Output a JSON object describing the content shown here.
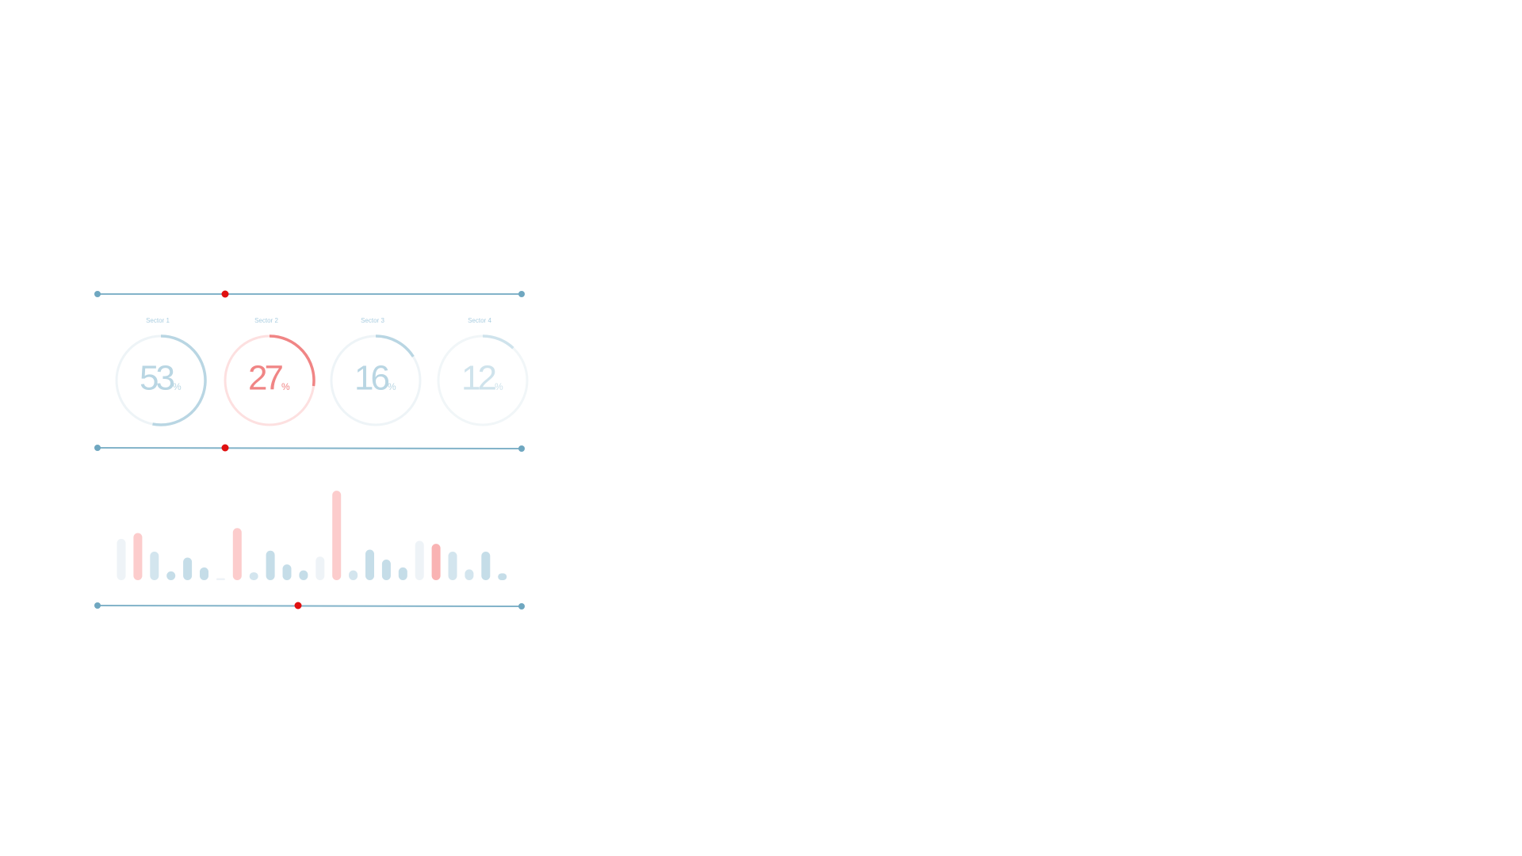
{
  "chart_data": [
    {
      "type": "gauge",
      "categories": [
        "Sector 1",
        "Sector 2",
        "Sector 3",
        "Sector 4"
      ],
      "values": [
        53,
        27,
        16,
        12
      ],
      "unit": "%",
      "colors": [
        "#b9d6e3",
        "#f08585",
        "#b9d6e3",
        "#cfe3ec"
      ],
      "track_colors": [
        "#eef4f7",
        "#fde0e0",
        "#eef4f7",
        "#f1f6f8"
      ]
    },
    {
      "type": "bar",
      "categories": [
        null,
        null,
        null,
        null,
        null,
        null,
        null,
        null,
        null,
        null,
        null,
        null,
        null,
        null,
        null,
        null,
        null,
        null,
        null,
        null,
        null,
        null,
        null,
        null
      ],
      "values": [
        42,
        48,
        29,
        9,
        23,
        13,
        2,
        53,
        8,
        30,
        16,
        10,
        24,
        91,
        10,
        31,
        21,
        13,
        40,
        37,
        29,
        11,
        29,
        7
      ],
      "colors": [
        "#eef3f7",
        "#fccccc",
        "#d3e5ee",
        "#c5dde8",
        "#c5dde8",
        "#c5dde8",
        "#eef3f7",
        "#fccccc",
        "#d3e5ee",
        "#c5dde8",
        "#c5dde8",
        "#c5dde8",
        "#eef3f7",
        "#fccccc",
        "#d3e5ee",
        "#c5dde8",
        "#c5dde8",
        "#c5dde8",
        "#eef3f7",
        "#f9b3b3",
        "#d3e5ee",
        "#d3e5ee",
        "#c5dde8",
        "#c5dde8"
      ]
    }
  ]
}
